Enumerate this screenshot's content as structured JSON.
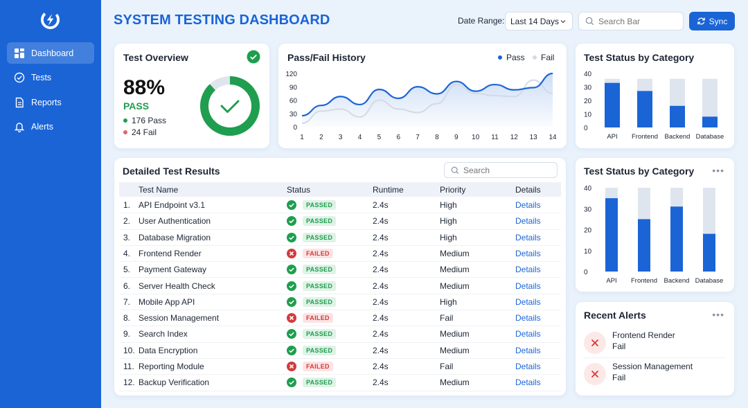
{
  "sidebar": {
    "items": [
      {
        "label": "Dashboard",
        "icon": "dashboard-icon",
        "active": true
      },
      {
        "label": "Tests",
        "icon": "check-circle-icon"
      },
      {
        "label": "Reports",
        "icon": "document-icon"
      },
      {
        "label": "Alerts",
        "icon": "bell-icon"
      }
    ]
  },
  "header": {
    "title": "SYSTEM TESTING DASHBOARD",
    "date_label": "Date Range:",
    "date_value": "Last 14 Days",
    "search_placeholder": "Search Bar",
    "sync_label": "Sync"
  },
  "overview": {
    "title": "Test Overview",
    "percent": "88%",
    "pass_label": "PASS",
    "pass_count": "176 Pass",
    "fail_count": "24 Fail",
    "pass_fraction": 0.88
  },
  "history": {
    "title": "Pass/Fail History",
    "legend_pass": "Pass",
    "legend_fail": "Fail"
  },
  "category1": {
    "title": "Test Status by Category"
  },
  "category2": {
    "title": "Test Status by Category",
    "more": "•••"
  },
  "table": {
    "title": "Detailed Test Results",
    "search_placeholder": "Search",
    "headers": [
      "Test Name",
      "Status",
      "Runtime",
      "Priority",
      "Details"
    ],
    "rows": [
      {
        "num": "1.",
        "name": "API Endpoint v3.1",
        "status": "PASSED",
        "runtime": "2.4s",
        "priority": "High",
        "details": "Details"
      },
      {
        "num": "2.",
        "name": "User Authentication",
        "status": "PASSED",
        "runtime": "2.4s",
        "priority": "High",
        "details": "Details"
      },
      {
        "num": "3.",
        "name": "Database Migration",
        "status": "PASSED",
        "runtime": "2.4s",
        "priority": "High",
        "details": "Details"
      },
      {
        "num": "4.",
        "name": "Frontend Render",
        "status": "FAILED",
        "runtime": "2.4s",
        "priority": "Medium",
        "details": "Details"
      },
      {
        "num": "5.",
        "name": "Payment Gateway",
        "status": "PASSED",
        "runtime": "2.4s",
        "priority": "Medium",
        "details": "Details"
      },
      {
        "num": "6.",
        "name": "Server Health Check",
        "status": "PASSED",
        "runtime": "2.4s",
        "priority": "Medium",
        "details": "Details"
      },
      {
        "num": "7.",
        "name": "Mobile App API",
        "status": "PASSED",
        "runtime": "2.4s",
        "priority": "High",
        "details": "Details"
      },
      {
        "num": "8.",
        "name": "Session Management",
        "status": "FAILED",
        "runtime": "2.4s",
        "priority": "Fail",
        "details": "Details"
      },
      {
        "num": "9.",
        "name": "Search Index",
        "status": "PASSED",
        "runtime": "2.4s",
        "priority": "Medium",
        "details": "Details"
      },
      {
        "num": "10.",
        "name": "Data Encryption",
        "status": "PASSED",
        "runtime": "2.4s",
        "priority": "Medium",
        "details": "Details"
      },
      {
        "num": "11.",
        "name": "Reporting Module",
        "status": "FAILED",
        "runtime": "2.4s",
        "priority": "Fail",
        "details": "Details"
      },
      {
        "num": "12.",
        "name": "Backup Verification",
        "status": "PASSED",
        "runtime": "2.4s",
        "priority": "Medium",
        "details": "Details"
      }
    ]
  },
  "alerts": {
    "title": "Recent Alerts",
    "more": "•••",
    "items": [
      {
        "title": "Frontend Render",
        "status": "Fail"
      },
      {
        "title": "Session Management",
        "status": "Fail"
      }
    ]
  },
  "colors": {
    "primary": "#1a64d6",
    "pass": "#1e9e4e",
    "fail": "#d23b3b",
    "track": "#dfe5ee"
  },
  "chart_data": [
    {
      "type": "line",
      "x": [
        1,
        2,
        3,
        4,
        5,
        6,
        7,
        8,
        9,
        10,
        11,
        12,
        13,
        14
      ],
      "yticks": [
        0,
        30,
        60,
        90,
        120
      ],
      "ylim": [
        0,
        120
      ],
      "series": [
        {
          "name": "Pass",
          "values": [
            25,
            48,
            68,
            50,
            84,
            64,
            90,
            74,
            102,
            80,
            95,
            83,
            88,
            120
          ]
        },
        {
          "name": "Fail",
          "values": [
            8,
            35,
            40,
            22,
            60,
            40,
            32,
            52,
            95,
            75,
            70,
            68,
            105,
            75
          ]
        }
      ]
    },
    {
      "type": "bar",
      "categories": [
        "API",
        "Frontend",
        "Backend",
        "Database"
      ],
      "values": [
        33,
        27,
        16,
        8
      ],
      "totals": [
        36,
        36,
        36,
        36
      ],
      "yticks": [
        0,
        10,
        20,
        30,
        40
      ],
      "ylim": [
        0,
        40
      ]
    },
    {
      "type": "bar",
      "categories": [
        "API",
        "Frontend",
        "Backend",
        "Database"
      ],
      "values": [
        35,
        25,
        31,
        18
      ],
      "totals": [
        40,
        40,
        40,
        40
      ],
      "yticks": [
        0,
        10,
        20,
        30,
        40
      ],
      "ylim": [
        0,
        40
      ]
    }
  ]
}
